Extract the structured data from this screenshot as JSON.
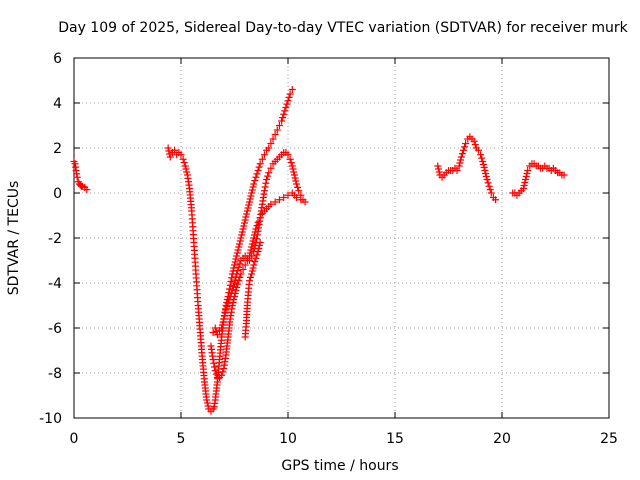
{
  "chart_data": {
    "type": "scatter",
    "title": "Day 109 of 2025, Sidereal Day-to-day VTEC variation (SDTVAR) for receiver murk",
    "xlabel": "GPS time / hours",
    "ylabel": "SDTVAR / TECUs",
    "xlim": [
      0,
      25
    ],
    "ylim": [
      -10,
      6
    ],
    "xticks": [
      0,
      5,
      10,
      15,
      20,
      25
    ],
    "yticks": [
      -10,
      -8,
      -6,
      -4,
      -2,
      0,
      2,
      4,
      6
    ],
    "xtick_labels": [
      "0",
      "5",
      "10",
      "15",
      "20",
      "25"
    ],
    "ytick_labels": [
      "-10",
      "-8",
      "-6",
      "-4",
      "-2",
      "0",
      "2",
      "4",
      "6"
    ],
    "grid": true,
    "legend": "none",
    "marker": "+",
    "color": "#ff0000",
    "series": [
      {
        "x": [
          0.0,
          0.05,
          0.1,
          0.15,
          0.2,
          0.25,
          0.3,
          0.35,
          0.4,
          0.5,
          0.6
        ],
        "y": [
          1.4,
          1.3,
          1.0,
          0.7,
          0.5,
          0.4,
          0.35,
          0.3,
          0.3,
          0.25,
          0.15
        ]
      },
      {
        "x": [
          4.4,
          4.5,
          4.6,
          4.7,
          4.8,
          4.9,
          5.0,
          5.1,
          5.2,
          5.3,
          5.4,
          5.5,
          5.6,
          5.7,
          5.8,
          5.9,
          6.0,
          6.1,
          6.2,
          6.3,
          6.4,
          6.5,
          6.55,
          6.6,
          6.7,
          6.8,
          6.9,
          7.0,
          7.1,
          7.2,
          7.3,
          7.4,
          7.5,
          7.6,
          7.7,
          7.8,
          7.9,
          8.0,
          8.1,
          8.2,
          8.3,
          8.4,
          8.5,
          8.6,
          8.7,
          8.8,
          8.9,
          9.0,
          9.1,
          9.2,
          9.3,
          9.4,
          9.5,
          9.6,
          9.7,
          9.8,
          9.9,
          10.0,
          10.1,
          10.2
        ],
        "y": [
          2.0,
          1.6,
          1.8,
          1.9,
          1.7,
          1.8,
          1.7,
          1.5,
          1.2,
          0.8,
          0.2,
          -0.8,
          -2.2,
          -3.6,
          -5.0,
          -6.2,
          -7.4,
          -8.4,
          -9.2,
          -9.6,
          -9.7,
          -9.6,
          -9.5,
          -9.2,
          -8.4,
          -7.4,
          -6.4,
          -5.6,
          -5.0,
          -4.6,
          -4.1,
          -3.6,
          -3.2,
          -2.8,
          -2.4,
          -2.0,
          -1.6,
          -1.2,
          -0.8,
          -0.4,
          0.0,
          0.4,
          0.7,
          1.0,
          1.3,
          1.5,
          1.7,
          1.9,
          2.0,
          2.2,
          2.4,
          2.6,
          2.8,
          3.0,
          3.2,
          3.5,
          3.8,
          4.1,
          4.4,
          4.6
        ]
      },
      {
        "x": [
          6.5,
          6.6,
          6.7,
          6.8,
          6.9,
          7.0,
          7.1,
          7.2,
          7.3,
          7.4,
          7.5,
          7.6,
          7.7,
          7.8,
          7.9,
          8.0,
          8.1,
          8.2,
          8.3,
          8.4,
          8.5,
          8.6,
          8.7,
          8.8,
          8.9,
          9.0,
          9.1,
          9.2,
          9.3,
          9.4,
          9.5,
          9.6,
          9.7,
          9.8,
          9.9,
          10.0,
          10.1,
          10.2,
          10.3,
          10.4,
          10.5,
          10.6,
          10.7,
          10.8
        ],
        "y": [
          -6.2,
          -6.0,
          -6.3,
          -6.1,
          -6.0,
          -5.6,
          -5.2,
          -4.9,
          -4.6,
          -4.3,
          -4.0,
          -3.6,
          -3.3,
          -3.0,
          -2.9,
          -2.8,
          -2.9,
          -3.0,
          -2.8,
          -2.6,
          -2.2,
          -1.7,
          -1.1,
          -0.5,
          0.1,
          0.6,
          0.9,
          1.1,
          1.3,
          1.4,
          1.5,
          1.6,
          1.7,
          1.8,
          1.8,
          1.7,
          1.5,
          1.2,
          0.8,
          0.4,
          0.1,
          -0.1,
          -0.3,
          -0.4
        ]
      },
      {
        "x": [
          6.4,
          6.5,
          6.6,
          6.7,
          6.8,
          6.9,
          7.0,
          7.1,
          7.2,
          7.3,
          7.4,
          7.5,
          7.6,
          7.7,
          7.8,
          7.9,
          8.0,
          8.1,
          8.2,
          8.3,
          8.4,
          8.5,
          8.6,
          8.7,
          8.8,
          8.9,
          9.0,
          9.2,
          9.4,
          9.6,
          9.8,
          10.0,
          10.2,
          10.4,
          10.6
        ],
        "y": [
          -6.8,
          -7.4,
          -7.9,
          -8.2,
          -8.2,
          -8.1,
          -7.8,
          -7.2,
          -6.4,
          -5.6,
          -5.0,
          -4.6,
          -4.2,
          -3.9,
          -3.6,
          -3.4,
          -3.2,
          -3.0,
          -2.8,
          -2.4,
          -2.0,
          -1.6,
          -1.3,
          -1.1,
          -0.9,
          -0.8,
          -0.7,
          -0.5,
          -0.4,
          -0.3,
          -0.2,
          -0.1,
          0.0,
          -0.2,
          -0.3
        ]
      },
      {
        "x": [
          8.0,
          8.05,
          8.1,
          8.15,
          8.2,
          8.3,
          8.4,
          8.5,
          8.6,
          8.7
        ],
        "y": [
          -6.4,
          -5.8,
          -5.0,
          -4.4,
          -3.9,
          -3.6,
          -3.2,
          -2.9,
          -2.6,
          -2.2
        ]
      },
      {
        "x": [
          17.0,
          17.1,
          17.2,
          17.3,
          17.4,
          17.5,
          17.6,
          17.7,
          17.8,
          17.9,
          18.0,
          18.1,
          18.2,
          18.3,
          18.4,
          18.5,
          18.6,
          18.7,
          18.8,
          18.9,
          19.0,
          19.1,
          19.2,
          19.3,
          19.4,
          19.5,
          19.6,
          19.7
        ],
        "y": [
          1.2,
          0.8,
          0.7,
          0.8,
          0.9,
          1.0,
          1.0,
          1.0,
          1.1,
          1.0,
          1.2,
          1.6,
          1.9,
          2.2,
          2.4,
          2.5,
          2.4,
          2.3,
          2.0,
          1.9,
          1.7,
          1.4,
          1.0,
          0.6,
          0.3,
          0.0,
          -0.2,
          -0.3
        ]
      },
      {
        "x": [
          20.5,
          20.6,
          20.7,
          20.8,
          20.9,
          21.0,
          21.1,
          21.2,
          21.3,
          21.4,
          21.5,
          21.6,
          21.7,
          21.8,
          21.9,
          22.0,
          22.1,
          22.2,
          22.3,
          22.4,
          22.5,
          22.6,
          22.7,
          22.8,
          22.9
        ],
        "y": [
          0.0,
          0.0,
          -0.1,
          0.0,
          0.1,
          0.2,
          0.6,
          1.0,
          1.2,
          1.3,
          1.3,
          1.2,
          1.2,
          1.1,
          1.1,
          1.2,
          1.1,
          1.1,
          1.0,
          1.1,
          1.0,
          0.9,
          0.9,
          0.8,
          0.8
        ]
      }
    ]
  }
}
